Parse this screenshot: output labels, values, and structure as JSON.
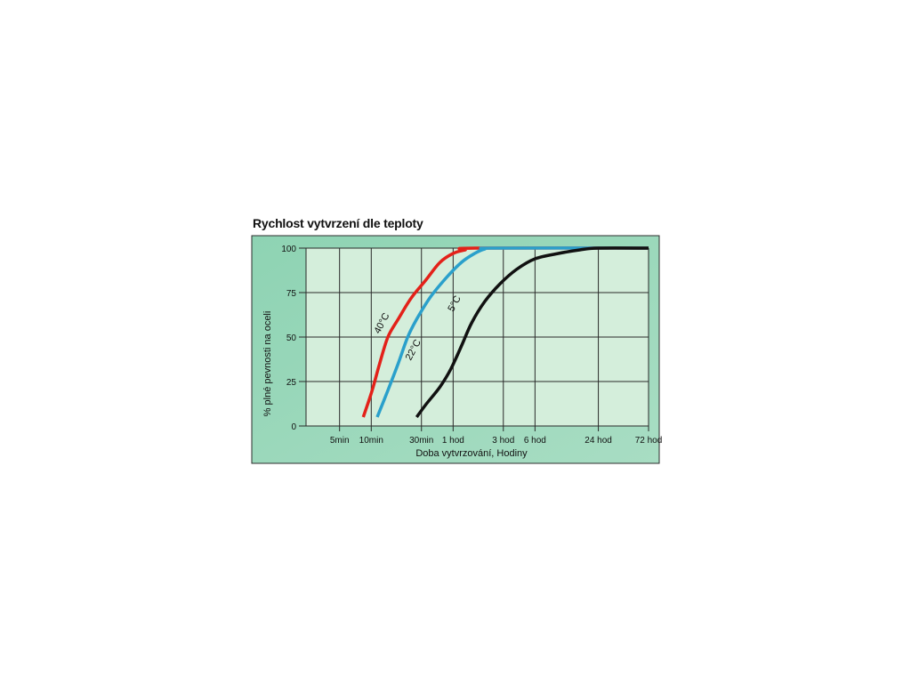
{
  "chart_data": {
    "type": "line",
    "title": "Rychlost vytvrzení dle teploty",
    "xlabel": "Doba vytvrzování, Hodiny",
    "ylabel": "% plné pevnosti na oceli",
    "x_scale": "log",
    "x_unit": "hours",
    "x_ticks": [
      {
        "value": 0.0833,
        "label": "5min"
      },
      {
        "value": 0.1667,
        "label": "10min"
      },
      {
        "value": 0.5,
        "label": "30min"
      },
      {
        "value": 1,
        "label": "1 hod"
      },
      {
        "value": 3,
        "label": "3 hod"
      },
      {
        "value": 6,
        "label": "6 hod"
      },
      {
        "value": 24,
        "label": "24 hod"
      },
      {
        "value": 72,
        "label": "72 hod"
      }
    ],
    "y_ticks": [
      0,
      25,
      50,
      75,
      100
    ],
    "ylim": [
      0,
      100
    ],
    "grid": true,
    "series": [
      {
        "name": "40°C",
        "color": "#e32119",
        "points": [
          [
            0.14,
            5
          ],
          [
            0.17,
            20
          ],
          [
            0.2,
            35
          ],
          [
            0.24,
            50
          ],
          [
            0.3,
            60
          ],
          [
            0.4,
            72
          ],
          [
            0.55,
            82
          ],
          [
            0.75,
            92
          ],
          [
            1.0,
            97
          ],
          [
            1.3,
            99
          ],
          [
            1.6,
            100
          ],
          [
            72,
            100
          ]
        ]
      },
      {
        "name": "22°C",
        "color": "#2aa0cb",
        "points": [
          [
            0.19,
            5
          ],
          [
            0.24,
            20
          ],
          [
            0.3,
            35
          ],
          [
            0.37,
            50
          ],
          [
            0.45,
            60
          ],
          [
            0.6,
            72
          ],
          [
            0.85,
            83
          ],
          [
            1.2,
            92
          ],
          [
            1.6,
            97
          ],
          [
            2.0,
            99.5
          ],
          [
            2.5,
            100
          ],
          [
            72,
            100
          ]
        ]
      },
      {
        "name": "5°C",
        "color": "#111111",
        "points": [
          [
            0.45,
            5
          ],
          [
            0.55,
            12
          ],
          [
            0.75,
            22
          ],
          [
            0.95,
            32
          ],
          [
            1.2,
            45
          ],
          [
            1.5,
            58
          ],
          [
            2.0,
            70
          ],
          [
            2.8,
            80
          ],
          [
            4.0,
            88
          ],
          [
            6.0,
            94
          ],
          [
            10,
            97
          ],
          [
            16,
            99
          ],
          [
            24,
            100
          ],
          [
            72,
            100
          ]
        ]
      }
    ]
  }
}
